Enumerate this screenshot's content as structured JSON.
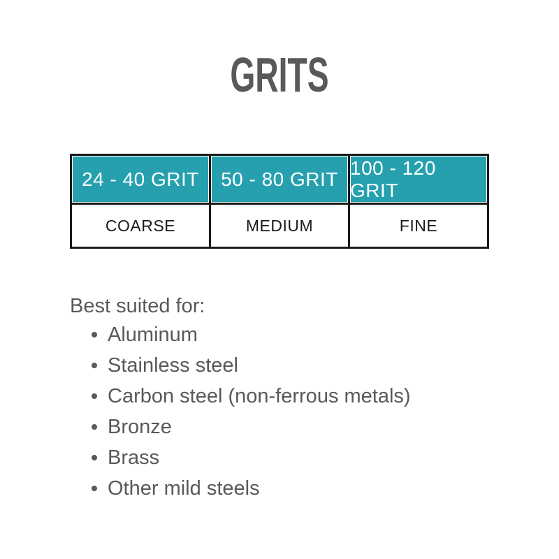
{
  "page": {
    "title": "GRITS"
  },
  "colors": {
    "accent_teal": "#26A0AE",
    "border_black": "#1A1A1A",
    "text_gray": "#58595B",
    "header_text": "#FFFFFF"
  },
  "grit_table": {
    "columns": [
      {
        "range": "24 - 40 GRIT",
        "coarseness": "COARSE"
      },
      {
        "range": "50 - 80 GRIT",
        "coarseness": "MEDIUM"
      },
      {
        "range": "100 - 120 GRIT",
        "coarseness": "FINE"
      }
    ]
  },
  "suitability": {
    "heading": "Best suited for:",
    "items": [
      "Aluminum",
      "Stainless steel",
      "Carbon steel (non-ferrous metals)",
      "Bronze",
      "Brass",
      "Other mild steels"
    ]
  }
}
